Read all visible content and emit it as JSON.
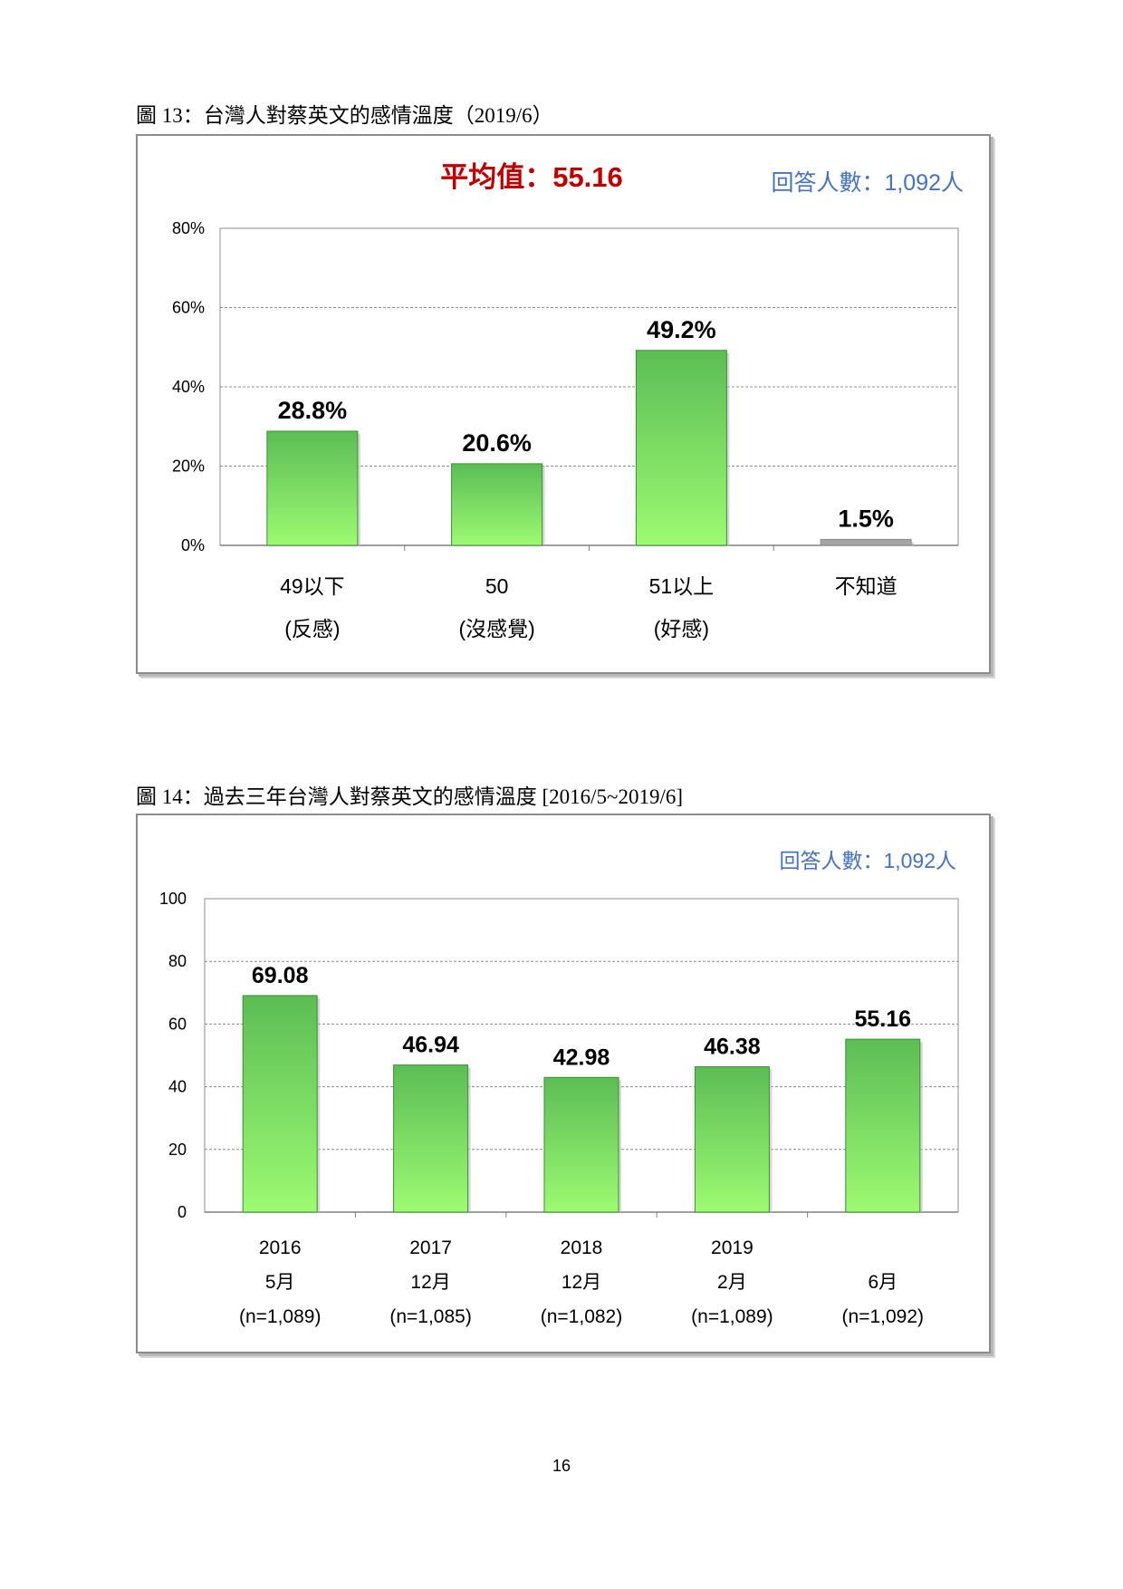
{
  "page": {
    "number": "16"
  },
  "colors": {
    "bar_top": "#5cbd55",
    "bar_bottom": "#9dfa72",
    "bar_edge": "#3a8f34",
    "mean_text": "#c00000",
    "respondents_text": "#4472c4",
    "unknown_bar": "#a6a6a6",
    "gridline": "#8c8c8c"
  },
  "figure13": {
    "title": "圖 13：台灣人對蔡英文的感情溫度（2019/6）",
    "mean_label": "平均值：55.16",
    "respondents_label": "回答人數：1,092人"
  },
  "figure14": {
    "title": "圖 14：過去三年台灣人對蔡英文的感情溫度 [2016/5~2019/6]",
    "respondents_label": "回答人數：1,092人"
  },
  "chart_data": [
    {
      "type": "bar",
      "title": "圖 13：台灣人對蔡英文的感情溫度（2019/6）",
      "categories": [
        {
          "line1": "49以下",
          "line2": "(反感)"
        },
        {
          "line1": "50",
          "line2": "(沒感覺)"
        },
        {
          "line1": "51以上",
          "line2": "(好感)"
        },
        {
          "line1": "不知道",
          "line2": ""
        }
      ],
      "values": [
        28.8,
        20.6,
        49.2,
        1.5
      ],
      "value_labels": [
        "28.8%",
        "20.6%",
        "49.2%",
        "1.5%"
      ],
      "bar_colors": [
        "green",
        "green",
        "green",
        "gray"
      ],
      "ylim": [
        0,
        80
      ],
      "yticks": [
        0,
        20,
        40,
        60,
        80
      ],
      "ytick_labels": [
        "0%",
        "20%",
        "40%",
        "60%",
        "80%"
      ],
      "grid": true,
      "xlabel": "",
      "ylabel": ""
    },
    {
      "type": "bar",
      "title": "圖 14：過去三年台灣人對蔡英文的感情溫度 [2016/5~2019/6]",
      "categories": [
        {
          "line1": "2016",
          "line2": "5月",
          "line3": "(n=1,089)"
        },
        {
          "line1": "2017",
          "line2": "12月",
          "line3": "(n=1,085)"
        },
        {
          "line1": "2018",
          "line2": "12月",
          "line3": "(n=1,082)"
        },
        {
          "line1": "2019",
          "line2": "2月",
          "line3": "(n=1,089)"
        },
        {
          "line1": "",
          "line2": "6月",
          "line3": "(n=1,092)"
        }
      ],
      "values": [
        69.08,
        46.94,
        42.98,
        46.38,
        55.16
      ],
      "value_labels": [
        "69.08",
        "46.94",
        "42.98",
        "46.38",
        "55.16"
      ],
      "ylim": [
        0,
        100
      ],
      "yticks": [
        0,
        20,
        40,
        60,
        80,
        100
      ],
      "ytick_labels": [
        "0",
        "20",
        "40",
        "60",
        "80",
        "100"
      ],
      "grid": true,
      "xlabel": "",
      "ylabel": ""
    }
  ]
}
